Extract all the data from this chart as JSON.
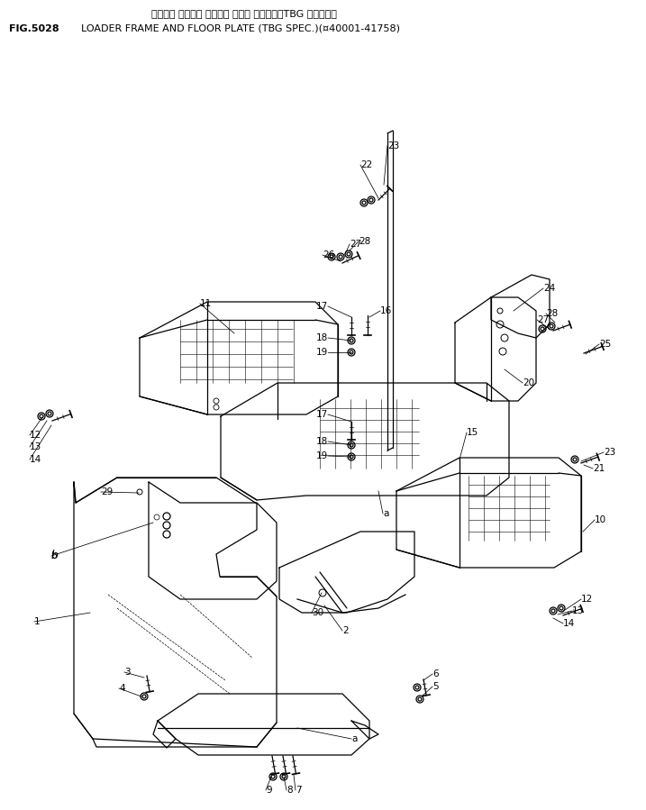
{
  "title_jp": "ローダー フレーム オヨビー フロア プレート（TBG シリーズ）",
  "title_en": "LOADER FRAME AND FLOOR PLATE (TBG SPEC.)(¤40001-41758)",
  "fig_no": "FIG.5028",
  "bg_color": "#ffffff",
  "lc": "#000000",
  "tc": "#000000",
  "lw": 0.9
}
